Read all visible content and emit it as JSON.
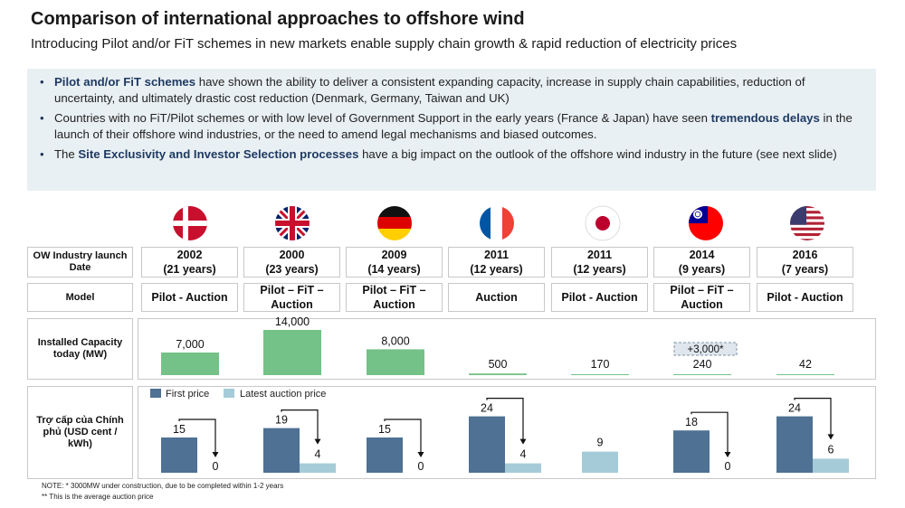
{
  "header": {
    "title": "Comparison of international approaches to offshore wind",
    "subtitle": "Introducing Pilot and/or FiT schemes in new markets enable supply chain growth & rapid reduction of electricity prices"
  },
  "bullets": [
    {
      "highlight": "Pilot and/or FiT schemes",
      "text": " have shown the ability to deliver a consistent expanding capacity, increase in supply chain capabilities, reduction of uncertainty, and ultimately drastic cost reduction (Denmark, Germany, Taiwan and UK)"
    },
    {
      "pre": "Countries with no FiT/Pilot schemes or with low level of Government Support in the early years (France & Japan) have seen ",
      "highlight": "tremendous delays",
      "text": " in the launch of their offshore wind industries, or the need to amend legal mechanisms and biased outcomes."
    },
    {
      "pre": "The ",
      "highlight": "Site Exclusivity and Investor Selection processes",
      "text": " have a big impact on the outlook of the offshore wind industry in the future (see next slide)"
    }
  ],
  "row_labels": {
    "launch": "OW Industry launch Date",
    "model": "Model",
    "capacity": "Installed Capacity today (MW)",
    "subsidy": "Trợ cấp của Chính phủ (USD cent / kWh)"
  },
  "countries": [
    {
      "flag": "denmark-flag-icon",
      "year": "2002",
      "years": "(21 years)",
      "model": "Pilot - Auction"
    },
    {
      "flag": "uk-flag-icon",
      "year": "2000",
      "years": "(23 years)",
      "model": "Pilot – FiT – Auction"
    },
    {
      "flag": "germany-flag-icon",
      "year": "2009",
      "years": "(14 years)",
      "model": "Pilot – FiT – Auction"
    },
    {
      "flag": "france-flag-icon",
      "year": "2011",
      "years": "(12 years)",
      "model": "Auction"
    },
    {
      "flag": "japan-flag-icon",
      "year": "2011",
      "years": "(12 years)",
      "model": "Pilot - Auction"
    },
    {
      "flag": "taiwan-flag-icon",
      "year": "2014",
      "years": "(9 years)",
      "model": "Pilot – FiT – Auction"
    },
    {
      "flag": "usa-flag-icon",
      "year": "2016",
      "years": "(7 years)",
      "model": "Pilot - Auction"
    }
  ],
  "colors": {
    "capacity_bar": "#74c287",
    "first_price": "#4e7194",
    "latest_price": "#a6cbd8",
    "highlight_text": "#1f3a63"
  },
  "chart_data": [
    {
      "type": "bar",
      "categories": [
        "Denmark",
        "UK",
        "Germany",
        "France",
        "Japan",
        "Taiwan",
        "USA"
      ],
      "values": [
        7000,
        14000,
        8000,
        500,
        170,
        240,
        42
      ],
      "labels": [
        "7,000",
        "14,000",
        "8,000",
        "500",
        "170",
        "240",
        "42"
      ],
      "annotation": "+3,000*",
      "title": "",
      "xlabel": "",
      "ylabel": ""
    },
    {
      "type": "bar",
      "categories": [
        "Denmark",
        "UK",
        "Germany",
        "France",
        "Japan",
        "Taiwan",
        "USA"
      ],
      "series": [
        {
          "name": "First price",
          "values": [
            15,
            19,
            15,
            24,
            null,
            18,
            24
          ]
        },
        {
          "name": "Latest auction price",
          "values": [
            0,
            4,
            0,
            4,
            9,
            0,
            6
          ]
        }
      ],
      "legend_position": "top-left",
      "title": "",
      "xlabel": "",
      "ylabel": ""
    }
  ],
  "notes": [
    "NOTE: * 3000MW under construction, due to be completed within 1-2 years",
    "** This is the average auction price"
  ]
}
